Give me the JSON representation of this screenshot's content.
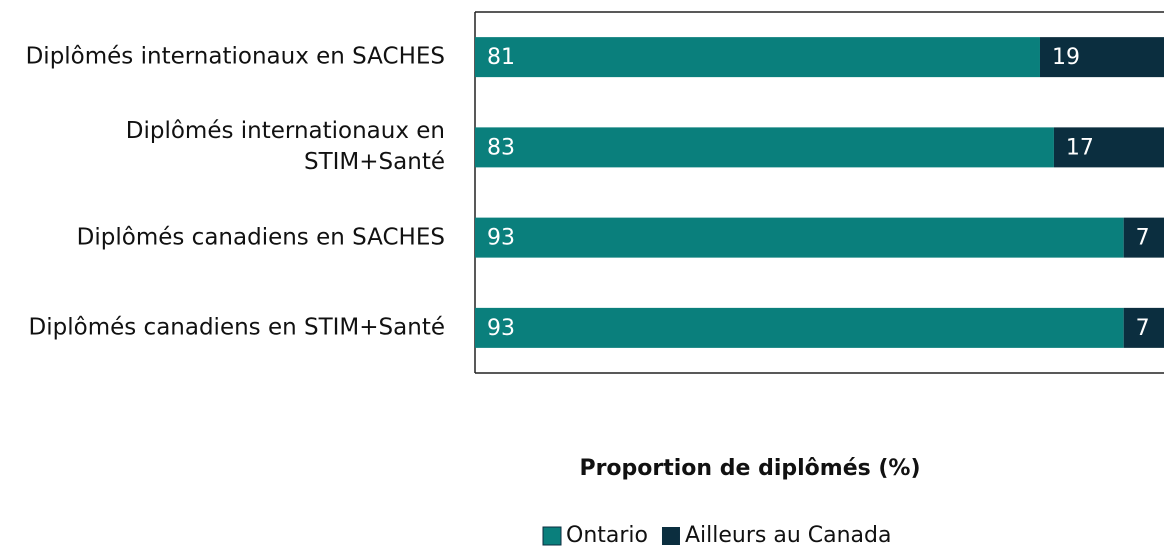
{
  "chart_data": {
    "type": "stacked_barh",
    "xlabel": "Proportion de diplômés (%)",
    "categories": [
      "Diplômés internationaux en SACHES",
      "Diplômés internationaux en STIM+Santé",
      "Diplômés canadiens en SACHES",
      "Diplômés canadiens en STIM+Santé"
    ],
    "series": [
      {
        "name": "Ontario",
        "color": "#0a7f7c",
        "values": [
          81,
          83,
          93,
          93
        ]
      },
      {
        "name": "Ailleurs au Canada",
        "color": "#0b2e3f",
        "values": [
          19,
          17,
          7,
          7
        ]
      }
    ],
    "xlim": [
      0,
      100
    ]
  }
}
